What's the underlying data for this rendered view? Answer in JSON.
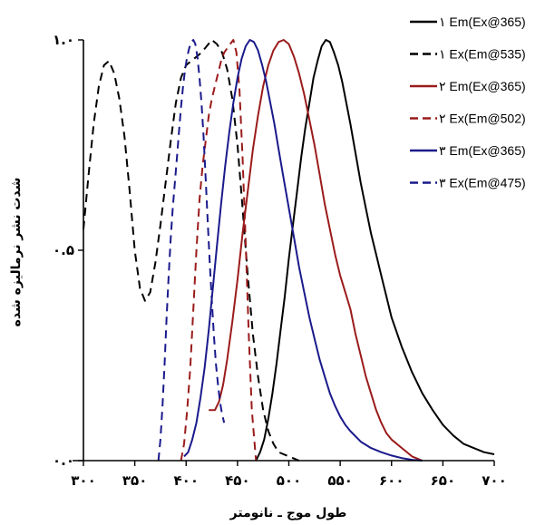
{
  "chart_data": {
    "type": "line",
    "xlabel": "طول موج ـ نانومتر",
    "ylabel": "شدت نشر نرماليزه شده",
    "xlim": [
      300,
      700
    ],
    "ylim": [
      0,
      1
    ],
    "x_ticks": [
      300,
      350,
      400,
      450,
      500,
      550,
      600,
      650,
      700
    ],
    "x_tick_labels": [
      "۳۰۰",
      "۳۵۰",
      "۴۰۰",
      "۴۵۰",
      "۵۰۰",
      "۵۵۰",
      "۶۰۰",
      "۶۵۰",
      "۷۰۰"
    ],
    "y_ticks": [
      0,
      0.5,
      1
    ],
    "y_tick_labels": [
      "۰.۰",
      "۰.۵",
      "۱.۰"
    ],
    "legend_position": "top-right",
    "series": [
      {
        "name": "۱ Em(Ex@365)",
        "color": "#000000",
        "dash": "solid",
        "x": [
          468,
          472,
          476,
          480,
          484,
          488,
          492,
          496,
          500,
          504,
          508,
          512,
          516,
          520,
          524,
          528,
          532,
          536,
          540,
          544,
          548,
          552,
          556,
          560,
          565,
          570,
          575,
          580,
          585,
          590,
          595,
          600,
          610,
          620,
          630,
          640,
          650,
          660,
          670,
          680,
          690,
          700
        ],
        "y": [
          0.0,
          0.02,
          0.05,
          0.1,
          0.16,
          0.23,
          0.31,
          0.39,
          0.48,
          0.56,
          0.64,
          0.72,
          0.79,
          0.85,
          0.91,
          0.95,
          0.985,
          1.0,
          0.995,
          0.97,
          0.94,
          0.9,
          0.85,
          0.8,
          0.73,
          0.66,
          0.6,
          0.54,
          0.49,
          0.44,
          0.39,
          0.34,
          0.27,
          0.21,
          0.16,
          0.12,
          0.085,
          0.06,
          0.04,
          0.03,
          0.02,
          0.015
        ]
      },
      {
        "name": "۱ Ex(Em@535)",
        "color": "#000000",
        "dash": "dashed",
        "x": [
          300,
          305,
          310,
          315,
          320,
          325,
          330,
          335,
          340,
          345,
          350,
          355,
          360,
          365,
          370,
          375,
          380,
          385,
          390,
          395,
          400,
          405,
          410,
          415,
          420,
          425,
          430,
          435,
          440,
          445,
          450,
          455,
          460,
          465,
          470,
          475,
          480,
          485,
          490,
          500,
          505,
          510
        ],
        "y": [
          0.55,
          0.68,
          0.8,
          0.89,
          0.94,
          0.95,
          0.92,
          0.86,
          0.77,
          0.64,
          0.5,
          0.41,
          0.38,
          0.4,
          0.47,
          0.56,
          0.66,
          0.76,
          0.85,
          0.91,
          0.94,
          0.95,
          0.96,
          0.97,
          0.985,
          1.0,
          0.99,
          0.97,
          0.93,
          0.86,
          0.75,
          0.6,
          0.44,
          0.3,
          0.2,
          0.12,
          0.07,
          0.04,
          0.02,
          0.01,
          0.005,
          0.0
        ]
      },
      {
        "name": "۲ Em(Ex@365)",
        "color": "#9b1b1b",
        "dash": "solid",
        "x": [
          422,
          428,
          432,
          436,
          440,
          445,
          450,
          455,
          460,
          465,
          470,
          475,
          480,
          485,
          490,
          495,
          500,
          505,
          510,
          515,
          520,
          525,
          530,
          535,
          540,
          545,
          550,
          555,
          560,
          565,
          570,
          575,
          580,
          585,
          590,
          595,
          600,
          610,
          620,
          630
        ],
        "y": [
          0.12,
          0.12,
          0.14,
          0.18,
          0.24,
          0.33,
          0.43,
          0.54,
          0.64,
          0.74,
          0.82,
          0.89,
          0.94,
          0.975,
          0.995,
          1.0,
          0.99,
          0.96,
          0.92,
          0.87,
          0.81,
          0.75,
          0.68,
          0.61,
          0.55,
          0.49,
          0.44,
          0.4,
          0.36,
          0.3,
          0.25,
          0.2,
          0.16,
          0.12,
          0.09,
          0.065,
          0.05,
          0.03,
          0.01,
          0.0
        ]
      },
      {
        "name": "۲ Ex(Em@502)",
        "color": "#9b1b1b",
        "dash": "dashed",
        "x": [
          395,
          398,
          401,
          404,
          407,
          410,
          413,
          416,
          419,
          422,
          425,
          428,
          431,
          434,
          437,
          440,
          443,
          446,
          449,
          452,
          455,
          458,
          461,
          464,
          468
        ],
        "y": [
          0.0,
          0.04,
          0.12,
          0.22,
          0.36,
          0.5,
          0.62,
          0.7,
          0.76,
          0.82,
          0.86,
          0.89,
          0.92,
          0.95,
          0.97,
          0.98,
          0.99,
          1.0,
          0.97,
          0.88,
          0.72,
          0.52,
          0.3,
          0.12,
          0.0
        ]
      },
      {
        "name": "۳ Em(Ex@365)",
        "color": "#1a1a8c",
        "dash": "solid",
        "x": [
          398,
          402,
          406,
          410,
          414,
          418,
          422,
          426,
          430,
          434,
          438,
          442,
          446,
          450,
          454,
          458,
          462,
          466,
          470,
          474,
          478,
          482,
          486,
          490,
          495,
          500,
          505,
          510,
          515,
          520,
          525,
          530,
          535,
          540,
          545,
          550,
          555,
          560,
          570,
          580,
          590,
          600,
          610,
          620,
          630
        ],
        "y": [
          0.01,
          0.02,
          0.05,
          0.09,
          0.15,
          0.22,
          0.31,
          0.41,
          0.51,
          0.61,
          0.7,
          0.78,
          0.85,
          0.91,
          0.955,
          0.985,
          1.0,
          0.995,
          0.975,
          0.94,
          0.9,
          0.85,
          0.8,
          0.74,
          0.67,
          0.6,
          0.53,
          0.46,
          0.4,
          0.34,
          0.29,
          0.24,
          0.2,
          0.16,
          0.13,
          0.105,
          0.085,
          0.07,
          0.045,
          0.03,
          0.02,
          0.012,
          0.006,
          0.002,
          0.0
        ]
      },
      {
        "name": "۳ Ex(Em@475)",
        "color": "#1a1a8c",
        "dash": "dashed",
        "x": [
          373,
          375,
          377,
          379,
          381,
          383,
          385,
          387,
          389,
          391,
          393,
          395,
          397,
          399,
          401,
          403,
          405,
          407,
          409,
          411,
          413,
          415,
          417,
          419,
          421,
          423,
          425,
          427,
          429,
          431,
          433,
          435,
          437
        ],
        "y": [
          0.0,
          0.05,
          0.13,
          0.23,
          0.34,
          0.44,
          0.53,
          0.6,
          0.66,
          0.72,
          0.78,
          0.84,
          0.89,
          0.93,
          0.96,
          0.98,
          0.995,
          1.0,
          0.99,
          0.96,
          0.91,
          0.85,
          0.77,
          0.67,
          0.57,
          0.47,
          0.38,
          0.3,
          0.23,
          0.18,
          0.14,
          0.11,
          0.09
        ]
      }
    ]
  }
}
